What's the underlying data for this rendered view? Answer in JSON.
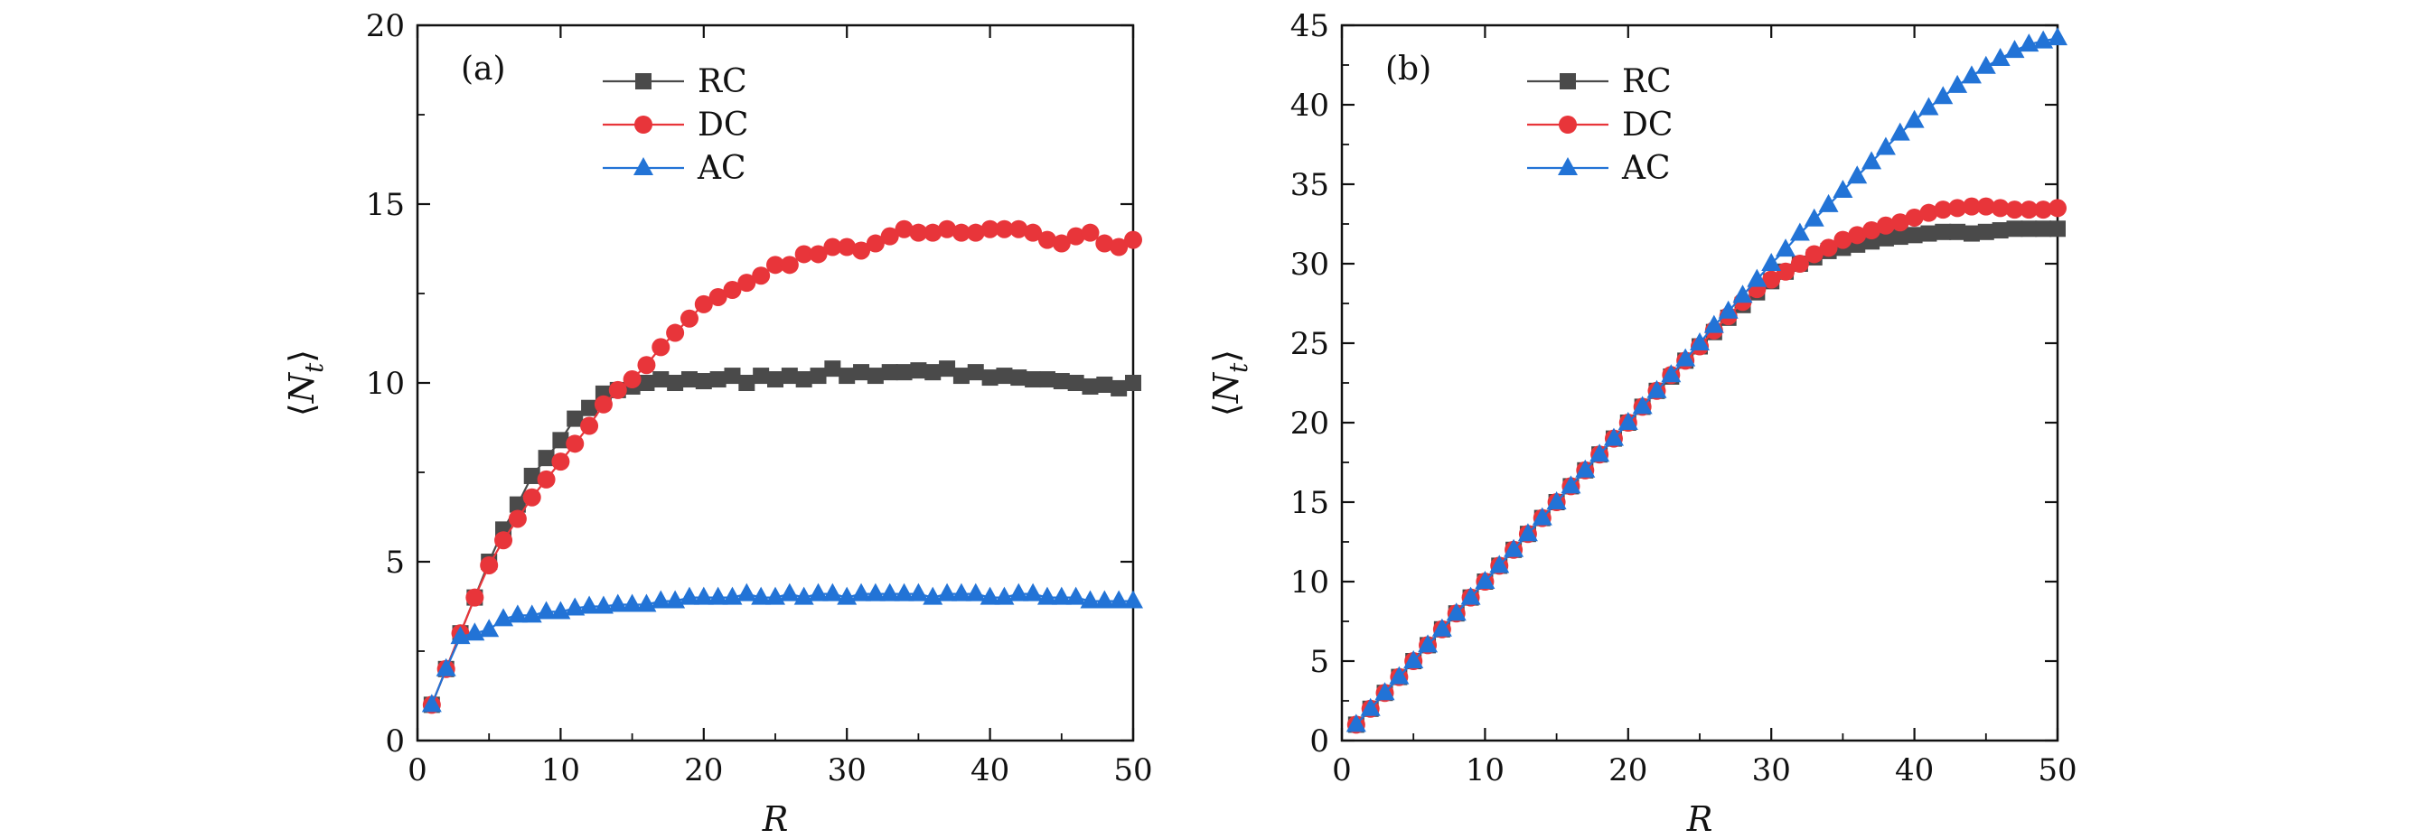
{
  "chart_data": [
    {
      "type": "line",
      "panel_label": "(a)",
      "xlabel": "R",
      "ylabel": "⟨N_t⟩",
      "ylabel_main": "N",
      "ylabel_sub": "t",
      "xlim": [
        0,
        50
      ],
      "ylim": [
        0,
        20
      ],
      "xticks": [
        0,
        10,
        20,
        30,
        40,
        50
      ],
      "yticks": [
        0,
        5,
        10,
        15,
        20
      ],
      "legend_position": "top-center",
      "x": [
        1,
        2,
        3,
        4,
        5,
        6,
        7,
        8,
        9,
        10,
        11,
        12,
        13,
        14,
        15,
        16,
        17,
        18,
        19,
        20,
        21,
        22,
        23,
        24,
        25,
        26,
        27,
        28,
        29,
        30,
        31,
        32,
        33,
        34,
        35,
        36,
        37,
        38,
        39,
        40,
        41,
        42,
        43,
        44,
        45,
        46,
        47,
        48,
        49,
        50
      ],
      "series": [
        {
          "name": "RC",
          "marker": "square",
          "color": "#4a4a4a",
          "values": [
            1,
            2,
            3,
            4,
            5,
            5.9,
            6.6,
            7.4,
            7.9,
            8.4,
            9.0,
            9.3,
            9.7,
            9.8,
            9.9,
            10.0,
            10.1,
            10.0,
            10.1,
            10.05,
            10.1,
            10.2,
            10.0,
            10.2,
            10.1,
            10.2,
            10.1,
            10.2,
            10.4,
            10.2,
            10.3,
            10.2,
            10.3,
            10.3,
            10.35,
            10.3,
            10.4,
            10.2,
            10.3,
            10.15,
            10.2,
            10.15,
            10.1,
            10.1,
            10.05,
            10.0,
            9.9,
            9.95,
            9.85,
            10.0
          ]
        },
        {
          "name": "DC",
          "marker": "circle",
          "color": "#e8353a",
          "values": [
            1,
            2,
            3,
            4,
            4.9,
            5.6,
            6.2,
            6.8,
            7.3,
            7.8,
            8.3,
            8.8,
            9.4,
            9.8,
            10.1,
            10.5,
            11.0,
            11.4,
            11.8,
            12.2,
            12.4,
            12.6,
            12.8,
            13.0,
            13.3,
            13.3,
            13.6,
            13.6,
            13.8,
            13.8,
            13.7,
            13.9,
            14.1,
            14.3,
            14.2,
            14.2,
            14.3,
            14.2,
            14.2,
            14.3,
            14.3,
            14.3,
            14.2,
            14.0,
            13.9,
            14.1,
            14.2,
            13.9,
            13.8,
            14.0
          ]
        },
        {
          "name": "AC",
          "marker": "triangle",
          "color": "#2273d6",
          "values": [
            1,
            2,
            2.9,
            3.0,
            3.1,
            3.4,
            3.5,
            3.5,
            3.6,
            3.6,
            3.7,
            3.75,
            3.75,
            3.8,
            3.8,
            3.8,
            3.9,
            3.9,
            4.0,
            4.0,
            4.0,
            4.0,
            4.1,
            4.0,
            4.0,
            4.1,
            4.0,
            4.1,
            4.1,
            4.0,
            4.1,
            4.1,
            4.1,
            4.1,
            4.1,
            4.0,
            4.1,
            4.1,
            4.1,
            4.0,
            4.0,
            4.1,
            4.1,
            4.0,
            4.0,
            4.0,
            3.9,
            3.9,
            3.9,
            3.9
          ]
        }
      ]
    },
    {
      "type": "line",
      "panel_label": "(b)",
      "xlabel": "R",
      "ylabel": "⟨N_t⟩",
      "ylabel_main": "N",
      "ylabel_sub": "t",
      "xlim": [
        0,
        50
      ],
      "ylim": [
        0,
        45
      ],
      "xticks": [
        0,
        10,
        20,
        30,
        40,
        50
      ],
      "yticks": [
        0,
        5,
        10,
        15,
        20,
        25,
        30,
        35,
        40,
        45
      ],
      "legend_position": "top-center",
      "x": [
        1,
        2,
        3,
        4,
        5,
        6,
        7,
        8,
        9,
        10,
        11,
        12,
        13,
        14,
        15,
        16,
        17,
        18,
        19,
        20,
        21,
        22,
        23,
        24,
        25,
        26,
        27,
        28,
        29,
        30,
        31,
        32,
        33,
        34,
        35,
        36,
        37,
        38,
        39,
        40,
        41,
        42,
        43,
        44,
        45,
        46,
        47,
        48,
        49,
        50
      ],
      "series": [
        {
          "name": "RC",
          "marker": "square",
          "color": "#4a4a4a",
          "values": [
            1,
            2,
            3,
            4,
            5,
            6,
            7,
            8,
            9,
            10,
            11,
            12,
            13,
            14,
            15,
            16,
            17,
            18,
            19,
            20,
            21,
            22,
            22.9,
            23.9,
            24.8,
            25.7,
            26.6,
            27.4,
            28.2,
            28.9,
            29.5,
            30.0,
            30.4,
            30.8,
            31.0,
            31.2,
            31.4,
            31.6,
            31.7,
            31.8,
            31.9,
            32.0,
            32.0,
            31.9,
            32.0,
            32.1,
            32.2,
            32.2,
            32.2,
            32.2
          ]
        },
        {
          "name": "DC",
          "marker": "circle",
          "color": "#e8353a",
          "values": [
            1,
            2,
            3,
            4,
            5,
            6,
            7,
            8,
            9,
            10,
            11,
            12,
            13,
            14,
            15,
            16,
            17,
            18,
            19,
            20,
            21,
            22,
            23,
            23.9,
            24.8,
            25.8,
            26.7,
            27.6,
            28.4,
            29.0,
            29.5,
            30.0,
            30.6,
            31.0,
            31.5,
            31.8,
            32.1,
            32.4,
            32.6,
            32.9,
            33.2,
            33.4,
            33.5,
            33.6,
            33.6,
            33.5,
            33.4,
            33.4,
            33.4,
            33.5
          ]
        },
        {
          "name": "AC",
          "marker": "triangle",
          "color": "#2273d6",
          "values": [
            1,
            2,
            3,
            4,
            5,
            6,
            7,
            8,
            9,
            10,
            11,
            12,
            13,
            14,
            15,
            16,
            17,
            18,
            19,
            20,
            21,
            22,
            23,
            24,
            25,
            26.1,
            27.0,
            28.0,
            29.0,
            30.0,
            30.9,
            31.9,
            32.8,
            33.7,
            34.6,
            35.5,
            36.4,
            37.3,
            38.2,
            39.0,
            39.8,
            40.5,
            41.2,
            41.8,
            42.4,
            42.9,
            43.4,
            43.8,
            44.0,
            44.2
          ]
        }
      ]
    }
  ]
}
